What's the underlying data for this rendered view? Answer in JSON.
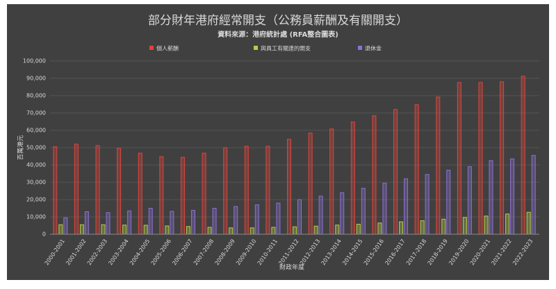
{
  "chart_data": {
    "type": "bar",
    "title": "部分財年港府經常開支（公務員薪酬及有關開支）",
    "subtitle": "資料來源：港府統計處 (RFA整合圖表)",
    "y_label": "百萬港元",
    "x_label": "財政年度",
    "categories": [
      "2000-2001",
      "2001-2002",
      "2002-2003",
      "2003-2004",
      "2004-2005",
      "2005-2006",
      "2006-2007",
      "2007-2008",
      "2008-2009",
      "2009-2010",
      "2010-2011",
      "2011-2012",
      "2012-2013",
      "2013-2014",
      "2014-2015",
      "2015-2016",
      "2016-2017",
      "2017-2018",
      "2018-2019",
      "2019-2020",
      "2020-2021",
      "2021-2022",
      "2022-2023"
    ],
    "series": [
      {
        "name": "個人薪酬",
        "color": "#e0443c",
        "values": [
          50500,
          52000,
          51200,
          49600,
          46800,
          44800,
          44400,
          46800,
          50000,
          50800,
          50800,
          54800,
          58400,
          60800,
          64800,
          68400,
          72000,
          74800,
          79200,
          87600,
          87600,
          88000,
          91200
        ]
      },
      {
        "name": "與員工有關連的開支",
        "color": "#b8cc4c",
        "values": [
          5500,
          5500,
          5500,
          5300,
          5200,
          4800,
          4500,
          4000,
          3700,
          3700,
          4000,
          4300,
          4700,
          5300,
          5800,
          6500,
          7200,
          7800,
          8700,
          9700,
          10500,
          11700,
          12700
        ]
      },
      {
        "name": "退休金",
        "color": "#8c70d4",
        "values": [
          9500,
          13000,
          12500,
          13500,
          15000,
          13200,
          13800,
          15000,
          16000,
          17000,
          18000,
          20000,
          22000,
          24000,
          26500,
          29500,
          32000,
          34500,
          37000,
          39000,
          42500,
          43500,
          45500
        ]
      }
    ],
    "ylim": [
      0,
      100000
    ],
    "yticks": [
      0,
      {
        "value": 10000,
        "label": "10,000"
      },
      {
        "value": 20000,
        "label": "20,000"
      },
      {
        "value": 30000,
        "label": "30,000"
      },
      {
        "value": 40000,
        "label": "40,000"
      },
      {
        "value": 50000,
        "label": "50,000"
      },
      {
        "value": 60000,
        "label": "60,000"
      },
      {
        "value": 70000,
        "label": "70,000"
      },
      {
        "value": 80000,
        "label": "80,000"
      },
      {
        "value": 90000,
        "label": "90,000"
      },
      {
        "value": 100000,
        "label": "100,000"
      }
    ],
    "grid": true,
    "legend": "top"
  }
}
